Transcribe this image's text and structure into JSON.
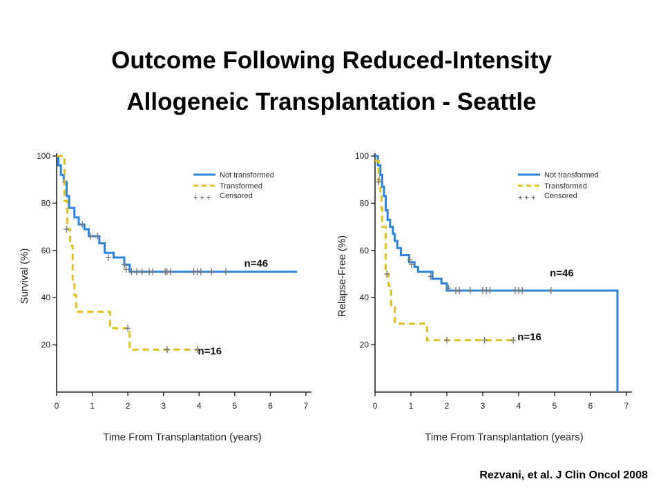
{
  "title": {
    "line1": "Outcome Following Reduced-Intensity",
    "line2": "Allogeneic Transplantation - Seattle"
  },
  "citation": "Rezvani, et al. J Clin Oncol 2008",
  "colors": {
    "not_transformed": "#2b83da",
    "transformed": "#e0c123",
    "censored": "#777777"
  },
  "chart_data": [
    {
      "type": "line",
      "step": true,
      "xlabel": "Time From Transplantation (years)",
      "ylabel": "Survival (%)",
      "xlim": [
        0,
        7
      ],
      "ylim": [
        0,
        100
      ],
      "xticks": [
        0,
        1,
        2,
        3,
        4,
        5,
        6,
        7
      ],
      "yticks": [
        20,
        40,
        60,
        80,
        100
      ],
      "legend": [
        "Not transformed",
        "Transformed",
        "Censored"
      ],
      "legend_censor_symbol": "+ + +",
      "annotations": [
        {
          "text": "n=46",
          "x": 5.6,
          "y": 53
        },
        {
          "text": "n=16",
          "x": 4.3,
          "y": 16
        }
      ],
      "series": [
        {
          "name": "Not transformed",
          "style": "solid",
          "points": [
            [
              0,
              100
            ],
            [
              0.05,
              96
            ],
            [
              0.12,
              92
            ],
            [
              0.2,
              89
            ],
            [
              0.28,
              83
            ],
            [
              0.35,
              78
            ],
            [
              0.5,
              74
            ],
            [
              0.62,
              71
            ],
            [
              0.78,
              69
            ],
            [
              0.9,
              66
            ],
            [
              1.2,
              63
            ],
            [
              1.35,
              59
            ],
            [
              1.6,
              57
            ],
            [
              1.9,
              54
            ],
            [
              2.05,
              51
            ],
            [
              6.75,
              51
            ]
          ],
          "censored": [
            [
              0.72,
              71
            ],
            [
              0.95,
              66
            ],
            [
              1.15,
              66
            ],
            [
              1.45,
              57
            ],
            [
              1.9,
              54
            ],
            [
              1.95,
              52
            ],
            [
              2.1,
              51
            ],
            [
              2.25,
              51
            ],
            [
              2.4,
              51
            ],
            [
              2.6,
              51
            ],
            [
              2.7,
              51
            ],
            [
              3.05,
              51
            ],
            [
              3.1,
              51
            ],
            [
              3.2,
              51
            ],
            [
              3.85,
              51
            ],
            [
              3.95,
              51
            ],
            [
              4.05,
              51
            ],
            [
              4.35,
              51
            ],
            [
              4.75,
              51
            ]
          ]
        },
        {
          "name": "Transformed",
          "style": "dashed",
          "points": [
            [
              0,
              100
            ],
            [
              0.18,
              100
            ],
            [
              0.22,
              81
            ],
            [
              0.3,
              69
            ],
            [
              0.38,
              62
            ],
            [
              0.45,
              47
            ],
            [
              0.5,
              41
            ],
            [
              0.55,
              34
            ],
            [
              1.5,
              34
            ],
            [
              1.5,
              27
            ],
            [
              2.05,
              27
            ],
            [
              2.05,
              18
            ],
            [
              4.0,
              18
            ]
          ],
          "censored": [
            [
              0.28,
              69
            ],
            [
              2.0,
              27
            ],
            [
              3.1,
              18
            ],
            [
              3.95,
              18
            ]
          ]
        }
      ]
    },
    {
      "type": "line",
      "step": true,
      "xlabel": "Time From Transplantation (years)",
      "ylabel": "Relapse-Free (%)",
      "xlim": [
        0,
        7
      ],
      "ylim": [
        0,
        100
      ],
      "xticks": [
        0,
        1,
        2,
        3,
        4,
        5,
        6,
        7
      ],
      "yticks": [
        20,
        40,
        60,
        80,
        100
      ],
      "legend": [
        "Not transformed",
        "Transformed",
        "Censored"
      ],
      "legend_censor_symbol": "+ + +",
      "annotations": [
        {
          "text": "n=46",
          "x": 5.2,
          "y": 49
        },
        {
          "text": "n=16",
          "x": 4.3,
          "y": 22
        }
      ],
      "series": [
        {
          "name": "Not transformed",
          "style": "solid",
          "points": [
            [
              0,
              100
            ],
            [
              0.08,
              96
            ],
            [
              0.15,
              92
            ],
            [
              0.2,
              87
            ],
            [
              0.25,
              83
            ],
            [
              0.3,
              77
            ],
            [
              0.35,
              73
            ],
            [
              0.42,
              70
            ],
            [
              0.5,
              67
            ],
            [
              0.55,
              64
            ],
            [
              0.62,
              61
            ],
            [
              0.72,
              58
            ],
            [
              0.95,
              55
            ],
            [
              1.1,
              53
            ],
            [
              1.2,
              51
            ],
            [
              1.6,
              48
            ],
            [
              1.85,
              46
            ],
            [
              2.0,
              43
            ],
            [
              6.75,
              43
            ],
            [
              6.75,
              0
            ]
          ],
          "censored": [
            [
              0.12,
              90
            ],
            [
              0.97,
              56
            ],
            [
              1.02,
              54
            ],
            [
              1.55,
              49
            ],
            [
              2.05,
              44
            ],
            [
              2.25,
              43
            ],
            [
              2.35,
              43
            ],
            [
              2.65,
              43
            ],
            [
              3.0,
              43
            ],
            [
              3.1,
              43
            ],
            [
              3.2,
              43
            ],
            [
              3.9,
              43
            ],
            [
              4.0,
              43
            ],
            [
              4.1,
              43
            ],
            [
              4.9,
              43
            ]
          ]
        },
        {
          "name": "Transformed",
          "style": "dashed",
          "points": [
            [
              0,
              98
            ],
            [
              0.1,
              89
            ],
            [
              0.15,
              83
            ],
            [
              0.18,
              78
            ],
            [
              0.2,
              70
            ],
            [
              0.3,
              50
            ],
            [
              0.38,
              45
            ],
            [
              0.45,
              36
            ],
            [
              0.55,
              29
            ],
            [
              1.45,
              29
            ],
            [
              1.45,
              22
            ],
            [
              3.9,
              22
            ]
          ],
          "censored": [
            [
              0.1,
              89
            ],
            [
              0.33,
              50
            ],
            [
              2.0,
              22
            ],
            [
              3.05,
              22
            ],
            [
              3.85,
              22
            ]
          ]
        }
      ]
    }
  ]
}
